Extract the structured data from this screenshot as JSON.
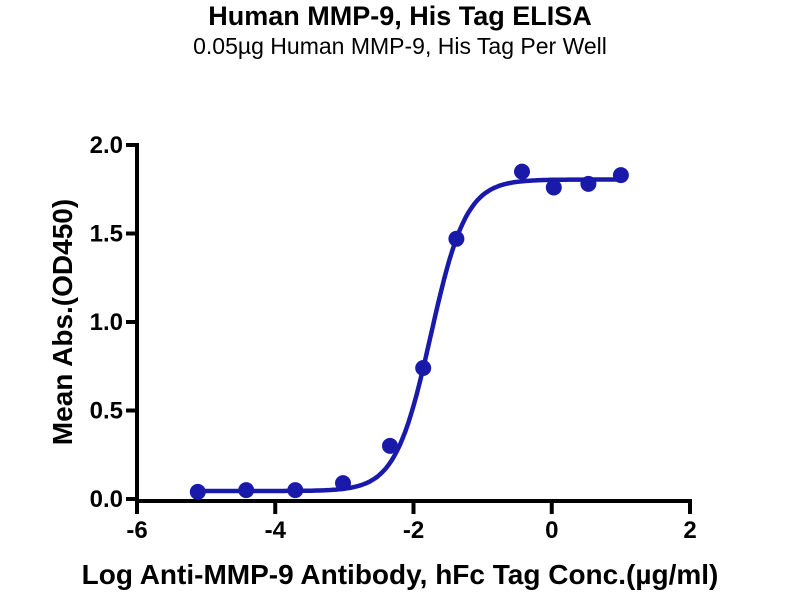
{
  "chart_data": {
    "type": "scatter",
    "title": "Human MMP-9, His Tag ELISA",
    "subtitle": "0.05µg Human MMP-9, His Tag Per Well",
    "xlabel": "Log Anti-MMP-9 Antibody, hFc Tag Conc.(µg/ml)",
    "ylabel": "Mean Abs.(OD450)",
    "xlim": [
      -6,
      2
    ],
    "ylim": [
      0,
      2
    ],
    "x_ticks": [
      -6,
      -4,
      -2,
      0,
      2
    ],
    "x_tick_labels": [
      "-6",
      "-4",
      "-2",
      "0",
      "2"
    ],
    "y_ticks": [
      0,
      0.5,
      1,
      1.5,
      2
    ],
    "y_tick_labels": [
      "0.0",
      "0.5",
      "1.0",
      "1.5",
      "2.0"
    ],
    "grid": false,
    "legend": "none",
    "series": [
      {
        "name": "Anti-MMP-9 Antibody, hFc Tag",
        "color": "#1a1aaa",
        "marker": "circle",
        "marker_radius_px": 8,
        "x": [
          -5.12,
          -4.42,
          -3.71,
          -3.02,
          -2.34,
          -1.86,
          -1.38,
          -0.43,
          0.03,
          0.53,
          1.0
        ],
        "y": [
          0.04,
          0.05,
          0.05,
          0.09,
          0.3,
          0.74,
          1.47,
          1.85,
          1.76,
          1.78,
          1.83
        ],
        "fit_curve": {
          "model": "4PL",
          "bottom": 0.045,
          "top": 1.805,
          "log_ec50": -1.75,
          "hill": 1.7,
          "x_start": -5.12,
          "x_end": 1.0
        }
      }
    ],
    "axis_color": "#000000",
    "background": "#ffffff"
  }
}
